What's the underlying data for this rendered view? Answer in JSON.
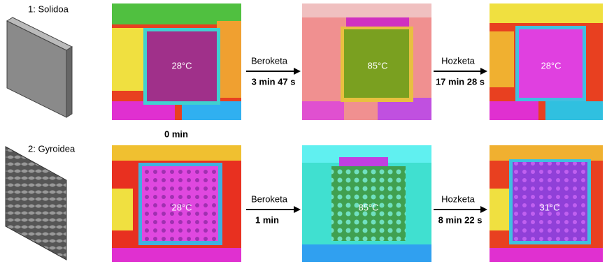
{
  "start_time": "0 min",
  "rows": [
    {
      "label": "1: Solidoa",
      "images": [
        {
          "temp": "28°C"
        },
        {
          "temp": "85°C"
        },
        {
          "temp": "28°C"
        }
      ],
      "steps": [
        {
          "label": "Beroketa",
          "time": "3 min 47 s"
        },
        {
          "label": "Hozketa",
          "time": "17 min 28 s"
        }
      ]
    },
    {
      "label": "2: Gyroidea",
      "images": [
        {
          "temp": "28°C"
        },
        {
          "temp": "85°C"
        },
        {
          "temp": "31°C"
        }
      ],
      "steps": [
        {
          "label": "Beroketa",
          "time": "1 min"
        },
        {
          "label": "Hozketa",
          "time": "8 min 22 s"
        }
      ]
    }
  ]
}
